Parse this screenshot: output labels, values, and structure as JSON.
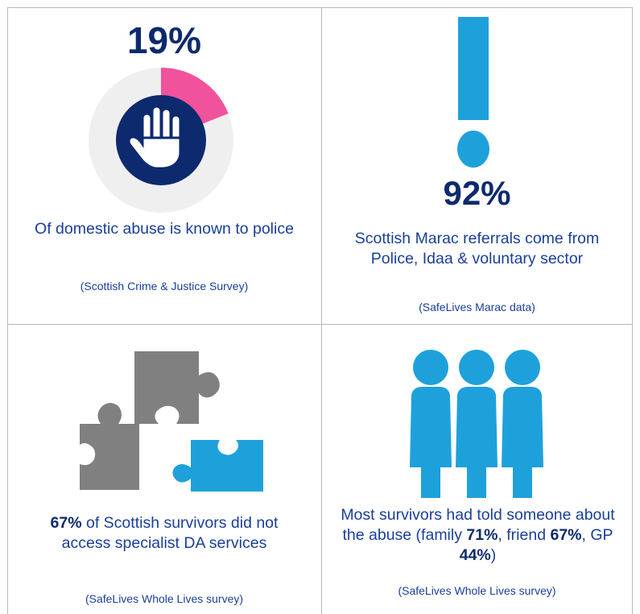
{
  "colors": {
    "navy": "#0d2a6e",
    "text_blue": "#1a3f9a",
    "pink": "#f0529c",
    "light_blue": "#1ea1db",
    "gray": "#808080",
    "ring_bg": "#efefef"
  },
  "q1": {
    "stat": "19%",
    "stat_value": 19,
    "text": "Of domestic abuse is known to police",
    "source": "(Scottish Crime & Justice Survey)",
    "icon": "hand-stop-icon"
  },
  "q2": {
    "stat": "92%",
    "text": "Scottish Marac referrals come from Police, Idaa & voluntary sector",
    "source": "(SafeLives Marac data)",
    "icon": "exclamation-icon"
  },
  "q3": {
    "stat": "67%",
    "text": " of Scottish survivors did not access specialist DA services",
    "source": "(SafeLives Whole Lives survey)",
    "icon": "puzzle-pieces-icon"
  },
  "q4": {
    "text_a": "Most survivors had told someone about the abuse (family ",
    "val_family": "71%",
    "text_b": ", friend ",
    "val_friend": "67%",
    "text_c": ", GP ",
    "val_gp": "44%",
    "text_d": ")",
    "source": "(SafeLives Whole Lives survey)",
    "icon": "people-group-icon"
  }
}
